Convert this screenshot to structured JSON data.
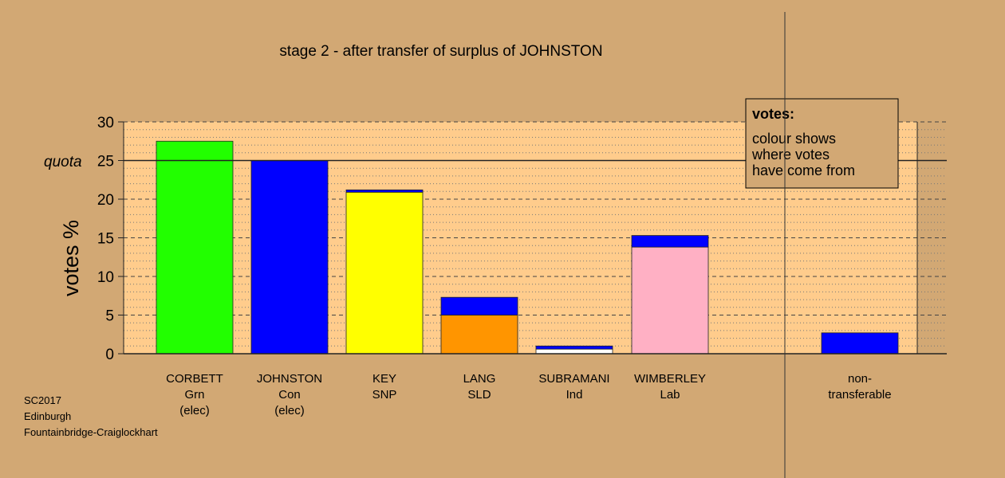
{
  "chart_data": {
    "type": "bar",
    "stacked": true,
    "title": "stage 2 - after transfer of surplus of JOHNSTON",
    "ylabel": "votes %",
    "ylim": [
      0,
      30
    ],
    "yticks": [
      0,
      5,
      10,
      15,
      20,
      25,
      30
    ],
    "quota": 25,
    "quota_label": "quota",
    "grid": true,
    "categories": [
      {
        "lines": [
          "CORBETT",
          "Grn",
          "(elec)"
        ],
        "segments": [
          {
            "value": 27.5,
            "color": "#22ff00"
          }
        ]
      },
      {
        "lines": [
          "JOHNSTON",
          "Con",
          "(elec)"
        ],
        "segments": [
          {
            "value": 25.0,
            "color": "#0000ff"
          }
        ]
      },
      {
        "lines": [
          "KEY",
          "SNP"
        ],
        "segments": [
          {
            "value": 20.9,
            "color": "#ffff00"
          },
          {
            "value": 0.3,
            "color": "#0000ff"
          }
        ]
      },
      {
        "lines": [
          "LANG",
          "SLD"
        ],
        "segments": [
          {
            "value": 5.0,
            "color": "#ff9500"
          },
          {
            "value": 2.3,
            "color": "#0000ff"
          }
        ]
      },
      {
        "lines": [
          "SUBRAMANI",
          "Ind"
        ],
        "segments": [
          {
            "value": 0.6,
            "color": "#ffffff"
          },
          {
            "value": 0.4,
            "color": "#0000ff"
          }
        ]
      },
      {
        "lines": [
          "WIMBERLEY",
          "Lab"
        ],
        "segments": [
          {
            "value": 13.8,
            "color": "#ffb0c4"
          },
          {
            "value": 1.5,
            "color": "#0000ff"
          }
        ]
      }
    ],
    "non_transferable": {
      "lines": [
        "non-",
        "transferable"
      ],
      "segments": [
        {
          "value": 2.7,
          "color": "#0000ff"
        }
      ]
    },
    "legend": {
      "title": "votes:",
      "lines": [
        "colour shows",
        "where votes",
        "have come from"
      ]
    },
    "source": [
      "SC2017",
      "Edinburgh",
      "Fountainbridge-Craiglockhart"
    ],
    "colors": {
      "background": "#d2a874",
      "plot_area": "#ffcc8c"
    }
  }
}
